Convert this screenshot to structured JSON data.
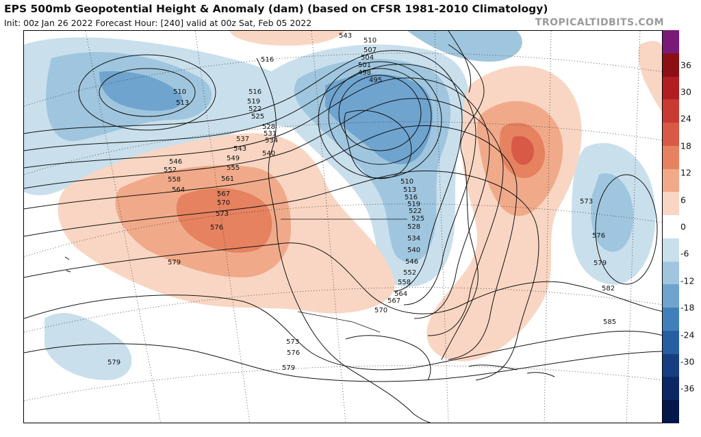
{
  "header": {
    "title": "EPS 500mb Geopotential Height & Anomaly (dam) (based on CFSR 1981-2010 Climatology)",
    "subtitle": "Init: 00z Jan 26 2022   Forecast Hour: [240]   valid at 00z Sat, Feb 05 2022",
    "credit": "TROPICALTIDBITS.COM"
  },
  "colorbar": {
    "ticks": [
      "36",
      "30",
      "24",
      "18",
      "12",
      "6",
      "0",
      "-6",
      "-12",
      "-18",
      "-24",
      "-30",
      "-36"
    ],
    "colors": [
      "#7a1a78",
      "#8c0f14",
      "#b01e22",
      "#c93a34",
      "#d85a46",
      "#e6825f",
      "#f0aa8a",
      "#f9d6c3",
      "#ffffff",
      "#c9dfec",
      "#9fc6de",
      "#6fa4cf",
      "#417fba",
      "#255ea1",
      "#163f82",
      "#0b2865",
      "#05174a"
    ]
  },
  "contour_labels": [
    {
      "text": "510"
    },
    {
      "text": "513"
    },
    {
      "text": "516"
    },
    {
      "text": "516"
    },
    {
      "text": "519"
    },
    {
      "text": "522"
    },
    {
      "text": "525"
    },
    {
      "text": "528"
    },
    {
      "text": "531"
    },
    {
      "text": "534"
    },
    {
      "text": "537"
    },
    {
      "text": "540"
    },
    {
      "text": "543"
    },
    {
      "text": "546"
    },
    {
      "text": "549"
    },
    {
      "text": "552"
    },
    {
      "text": "555"
    },
    {
      "text": "558"
    },
    {
      "text": "561"
    },
    {
      "text": "564"
    },
    {
      "text": "567"
    },
    {
      "text": "570"
    },
    {
      "text": "573"
    },
    {
      "text": "576"
    },
    {
      "text": "579"
    },
    {
      "text": "579"
    },
    {
      "text": "579"
    },
    {
      "text": "573"
    },
    {
      "text": "576"
    },
    {
      "text": "570"
    },
    {
      "text": "567"
    },
    {
      "text": "564"
    },
    {
      "text": "558"
    },
    {
      "text": "552"
    },
    {
      "text": "546"
    },
    {
      "text": "540"
    },
    {
      "text": "534"
    },
    {
      "text": "528"
    },
    {
      "text": "525"
    },
    {
      "text": "522"
    },
    {
      "text": "519"
    },
    {
      "text": "516"
    },
    {
      "text": "513"
    },
    {
      "text": "510"
    },
    {
      "text": "507"
    },
    {
      "text": "504"
    },
    {
      "text": "501"
    },
    {
      "text": "498"
    },
    {
      "text": "495"
    },
    {
      "text": "573"
    },
    {
      "text": "576"
    },
    {
      "text": "579"
    },
    {
      "text": "582"
    },
    {
      "text": "585"
    },
    {
      "text": "543"
    },
    {
      "text": "510"
    }
  ]
}
